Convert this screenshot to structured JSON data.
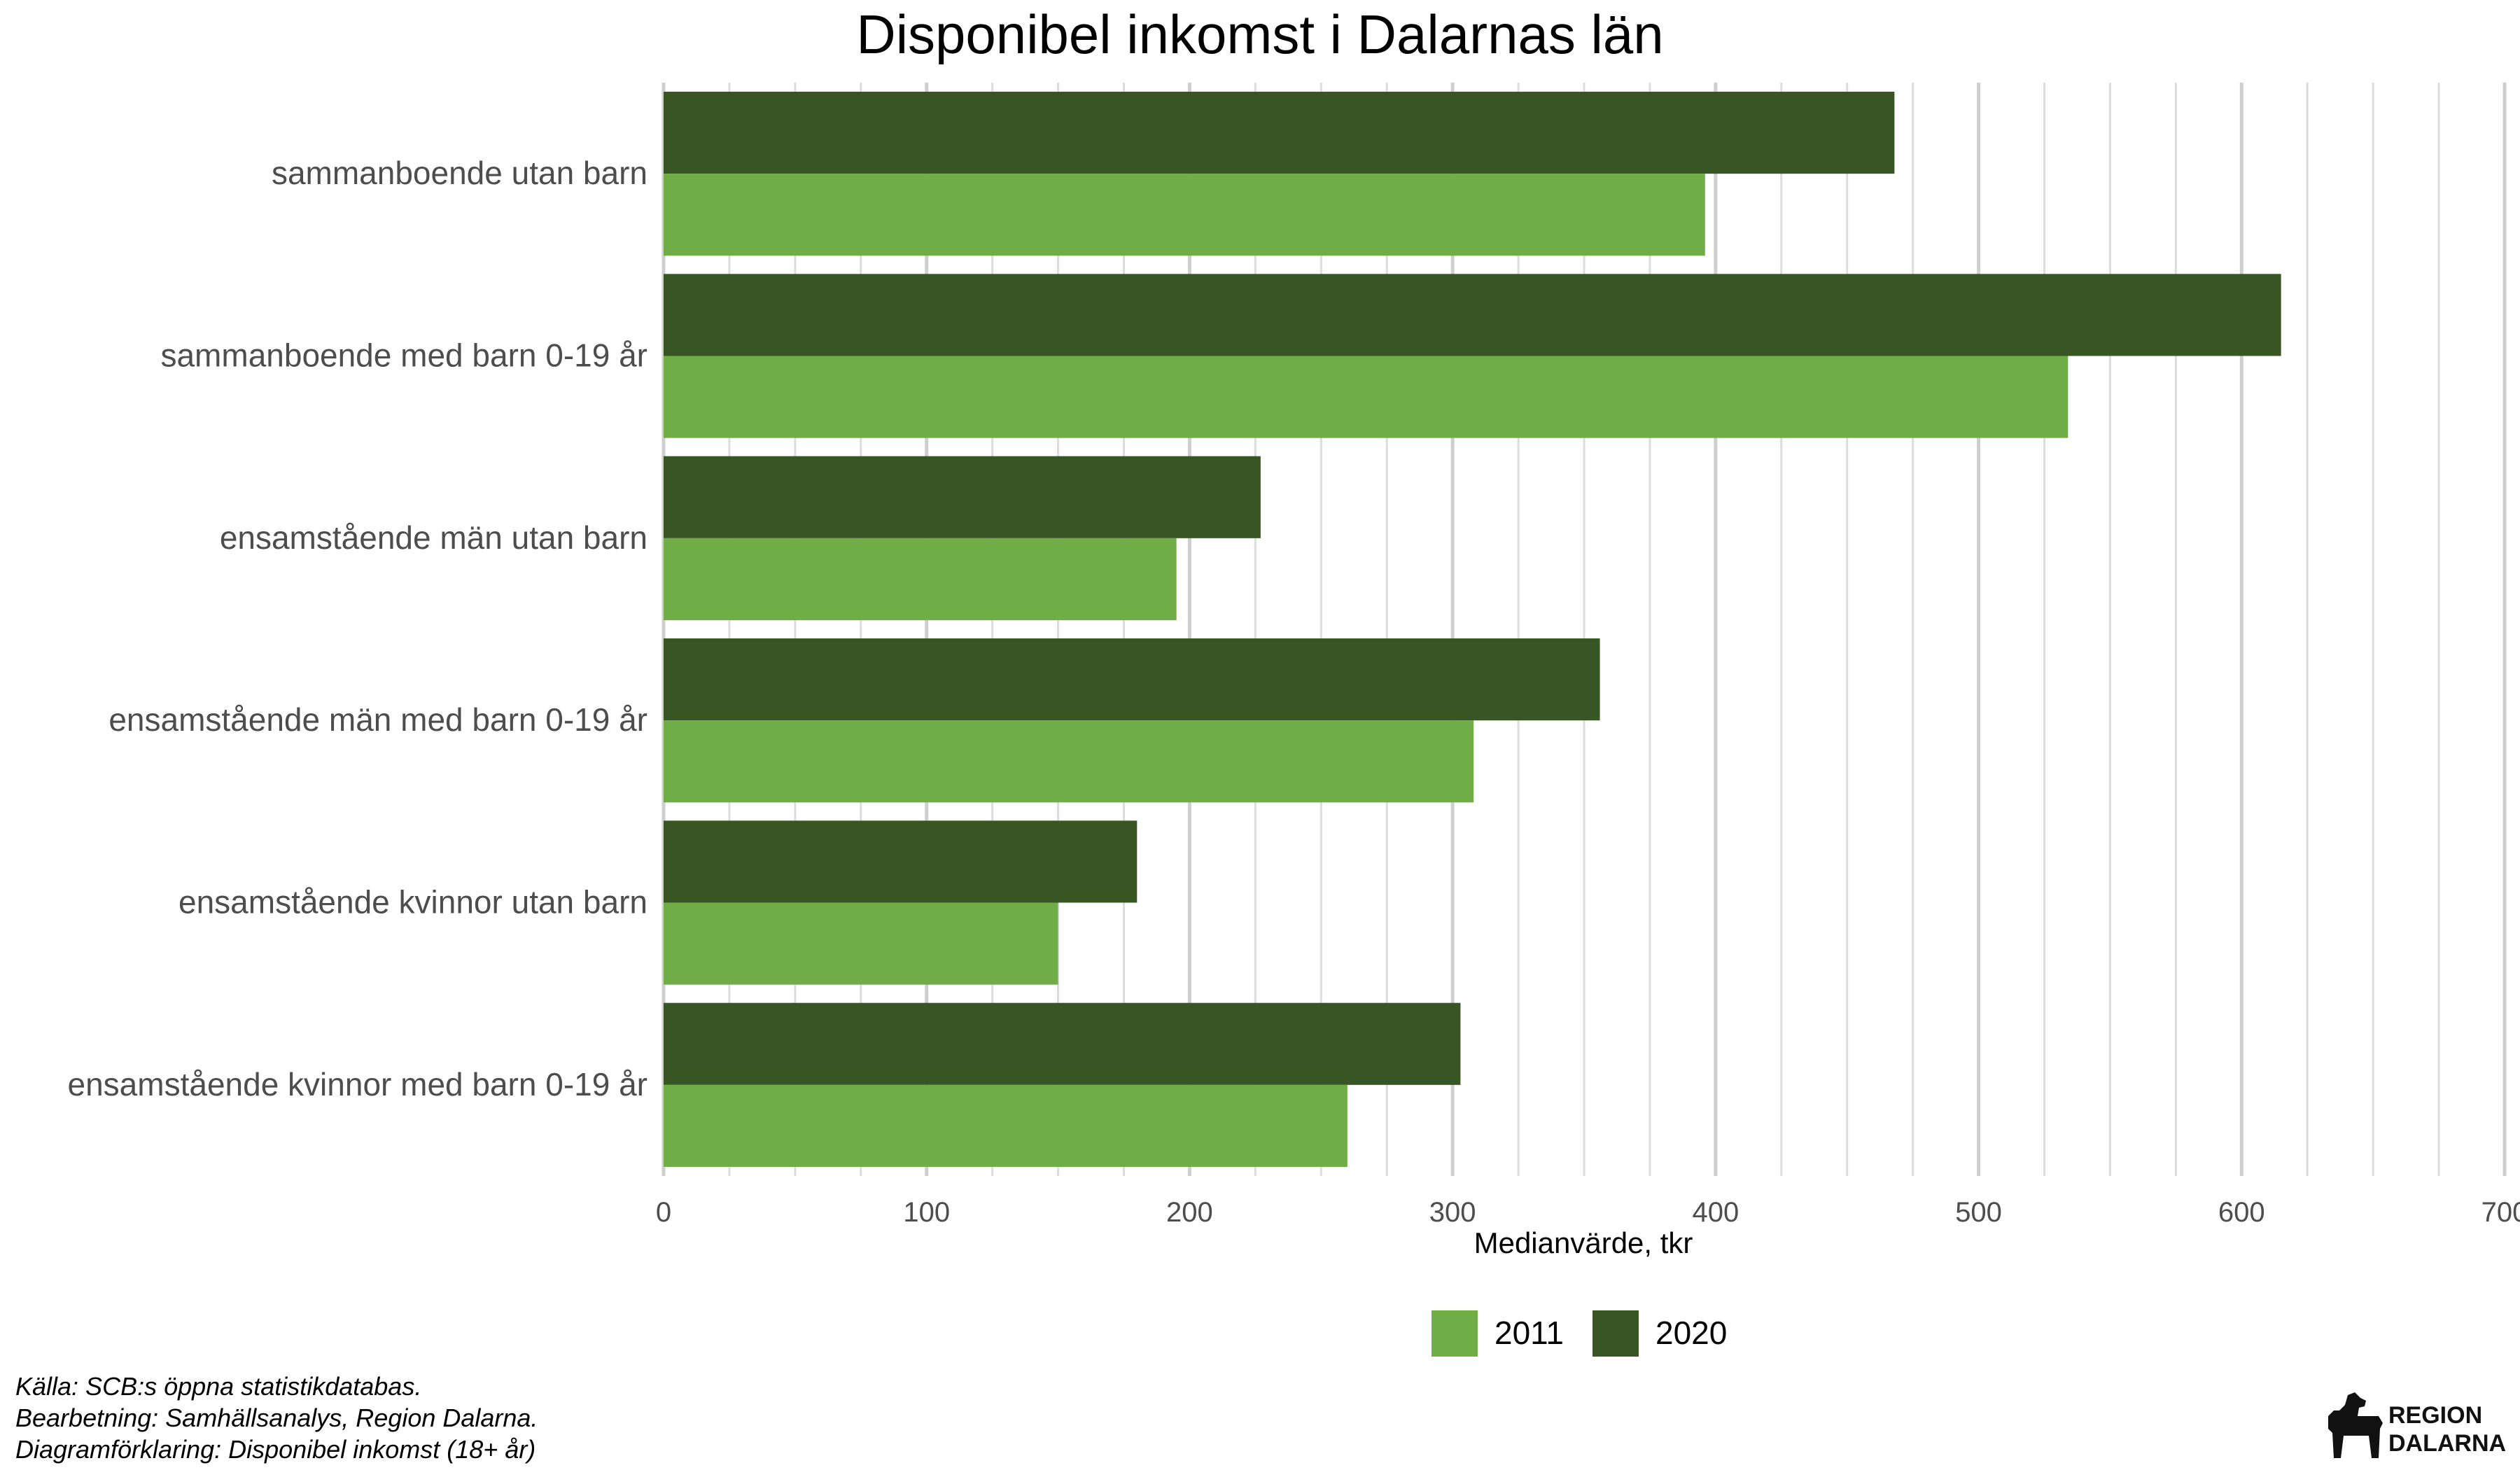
{
  "chart_data": {
    "type": "bar",
    "orientation": "horizontal",
    "title": "Disponibel inkomst i Dalarnas län",
    "xlabel": "Medianvärde, tkr",
    "ylabel": "",
    "xlim": [
      0,
      700
    ],
    "x_ticks": [
      "0",
      "100",
      "200",
      "300",
      "400",
      "500",
      "600",
      "700"
    ],
    "grid": true,
    "legend_position": "bottom",
    "categories": [
      "sammanboende utan barn",
      "sammanboende med barn 0-19 år",
      "ensamstående män utan barn",
      "ensamstående män med barn 0-19 år",
      "ensamstående kvinnor utan barn",
      "ensamstående kvinnor med barn 0-19 år"
    ],
    "series": [
      {
        "name": "2011",
        "color": "#70AD47",
        "values": [
          396,
          534,
          195,
          308,
          150,
          260
        ]
      },
      {
        "name": "2020",
        "color": "#375623",
        "values": [
          468,
          615,
          227,
          356,
          180,
          303
        ]
      }
    ]
  },
  "caption": {
    "source": "Källa: SCB:s öppna statistikdatabas.",
    "processing": "Bearbetning: Samhällsanalys, Region Dalarna.",
    "explanation": "Diagramförklaring: Disponibel inkomst (18+ år)"
  },
  "logo": {
    "line1": "REGION",
    "line2": "DALARNA"
  }
}
